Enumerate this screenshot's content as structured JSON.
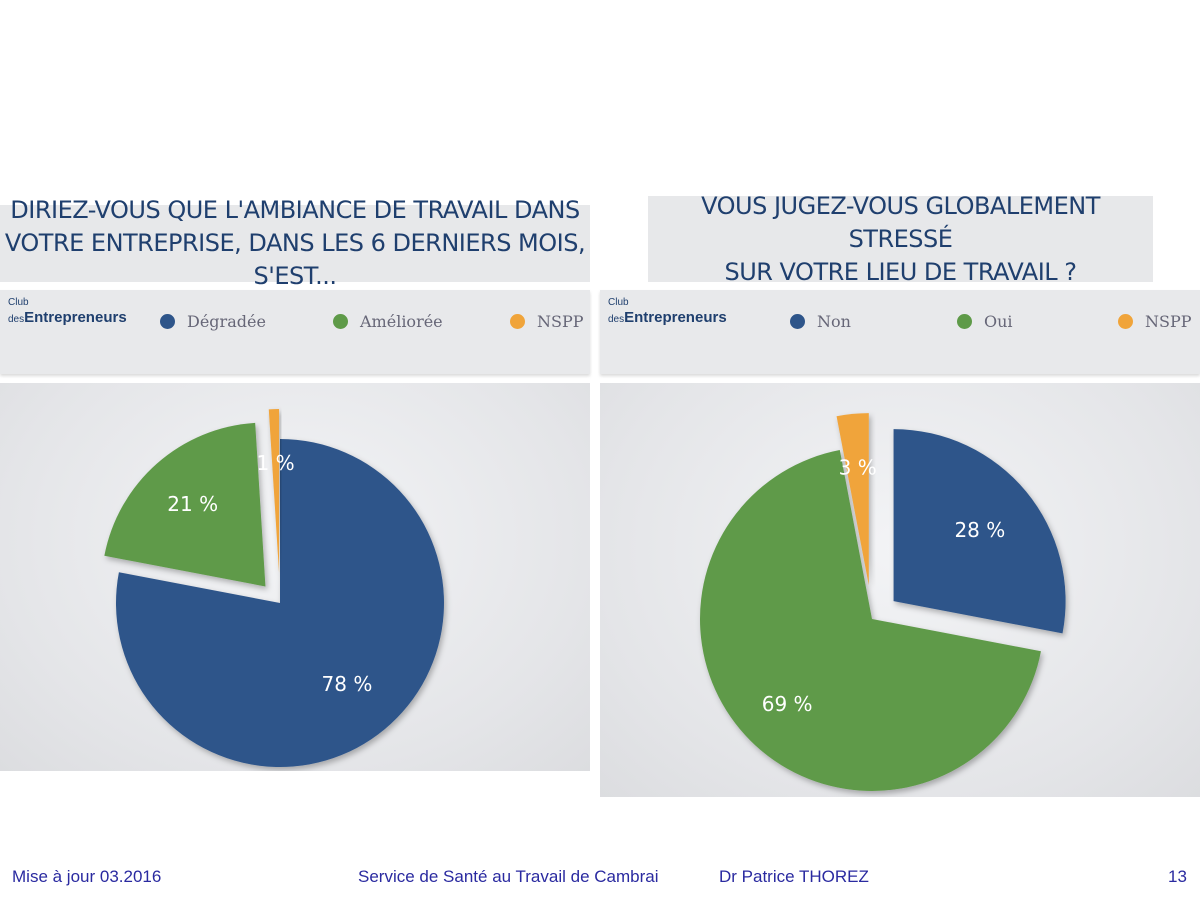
{
  "footer": {
    "update": "Mise à jour 03.2016",
    "service": "Service de Santé au Travail de Cambrai",
    "author": "Dr Patrice THOREZ",
    "page": "13"
  },
  "logo": {
    "club": "Club",
    "des": "des",
    "entrepreneurs": "Entrepreneurs"
  },
  "chart_data": [
    {
      "type": "pie",
      "title": "DIRIEZ-VOUS QUE L'AMBIANCE DE TRAVAIL DANS VOTRE ENTREPRISE, DANS LES 6 DERNIERS MOIS, S'EST...",
      "title_lines": [
        "DIRIEZ-VOUS QUE L'AMBIANCE DE TRAVAIL DANS",
        "VOTRE ENTREPRISE, DANS LES 6 DERNIERS MOIS, S'EST..."
      ],
      "legend_position": "top",
      "categories": [
        "Dégradée",
        "Améliorée",
        "NSPP"
      ],
      "values": [
        78,
        21,
        1
      ],
      "labels": [
        "78 %",
        "21 %",
        "1 %"
      ],
      "colors": [
        "#2e558a",
        "#5e9a48",
        "#f0a43a"
      ]
    },
    {
      "type": "pie",
      "title": "VOUS JUGEZ-VOUS GLOBALEMENT STRESSÉ SUR VOTRE LIEU DE TRAVAIL ?",
      "title_lines": [
        "VOUS JUGEZ-VOUS GLOBALEMENT STRESSÉ",
        "SUR VOTRE LIEU DE TRAVAIL ?"
      ],
      "legend_position": "top",
      "categories": [
        "Non",
        "Oui",
        "NSPP"
      ],
      "values": [
        28,
        69,
        3
      ],
      "labels": [
        "28 %",
        "69 %",
        "3 %"
      ],
      "colors": [
        "#2e558a",
        "#5e9a48",
        "#f0a43a"
      ]
    }
  ]
}
